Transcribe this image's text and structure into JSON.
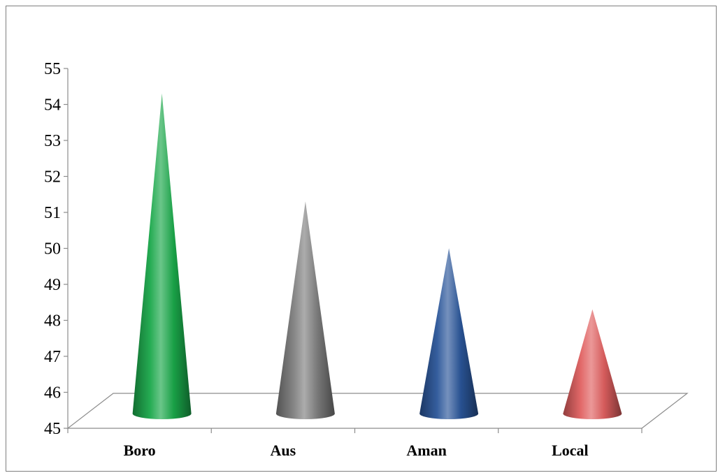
{
  "chart_data": {
    "type": "bar",
    "bar_shape": "cone",
    "categories": [
      "Boro",
      "Aus",
      "Aman",
      "Local"
    ],
    "values": [
      54.5,
      51.5,
      50.2,
      48.5
    ],
    "ylim": [
      45,
      55
    ],
    "yticks": [
      "45",
      "46",
      "47",
      "48",
      "49",
      "50",
      "51",
      "52",
      "53",
      "54",
      "55"
    ],
    "title": "",
    "xlabel": "",
    "ylabel": "",
    "grid": false,
    "legend": "none",
    "colors": [
      "#1aa84a",
      "#7f7f7f",
      "#2a5599",
      "#e06060"
    ]
  }
}
